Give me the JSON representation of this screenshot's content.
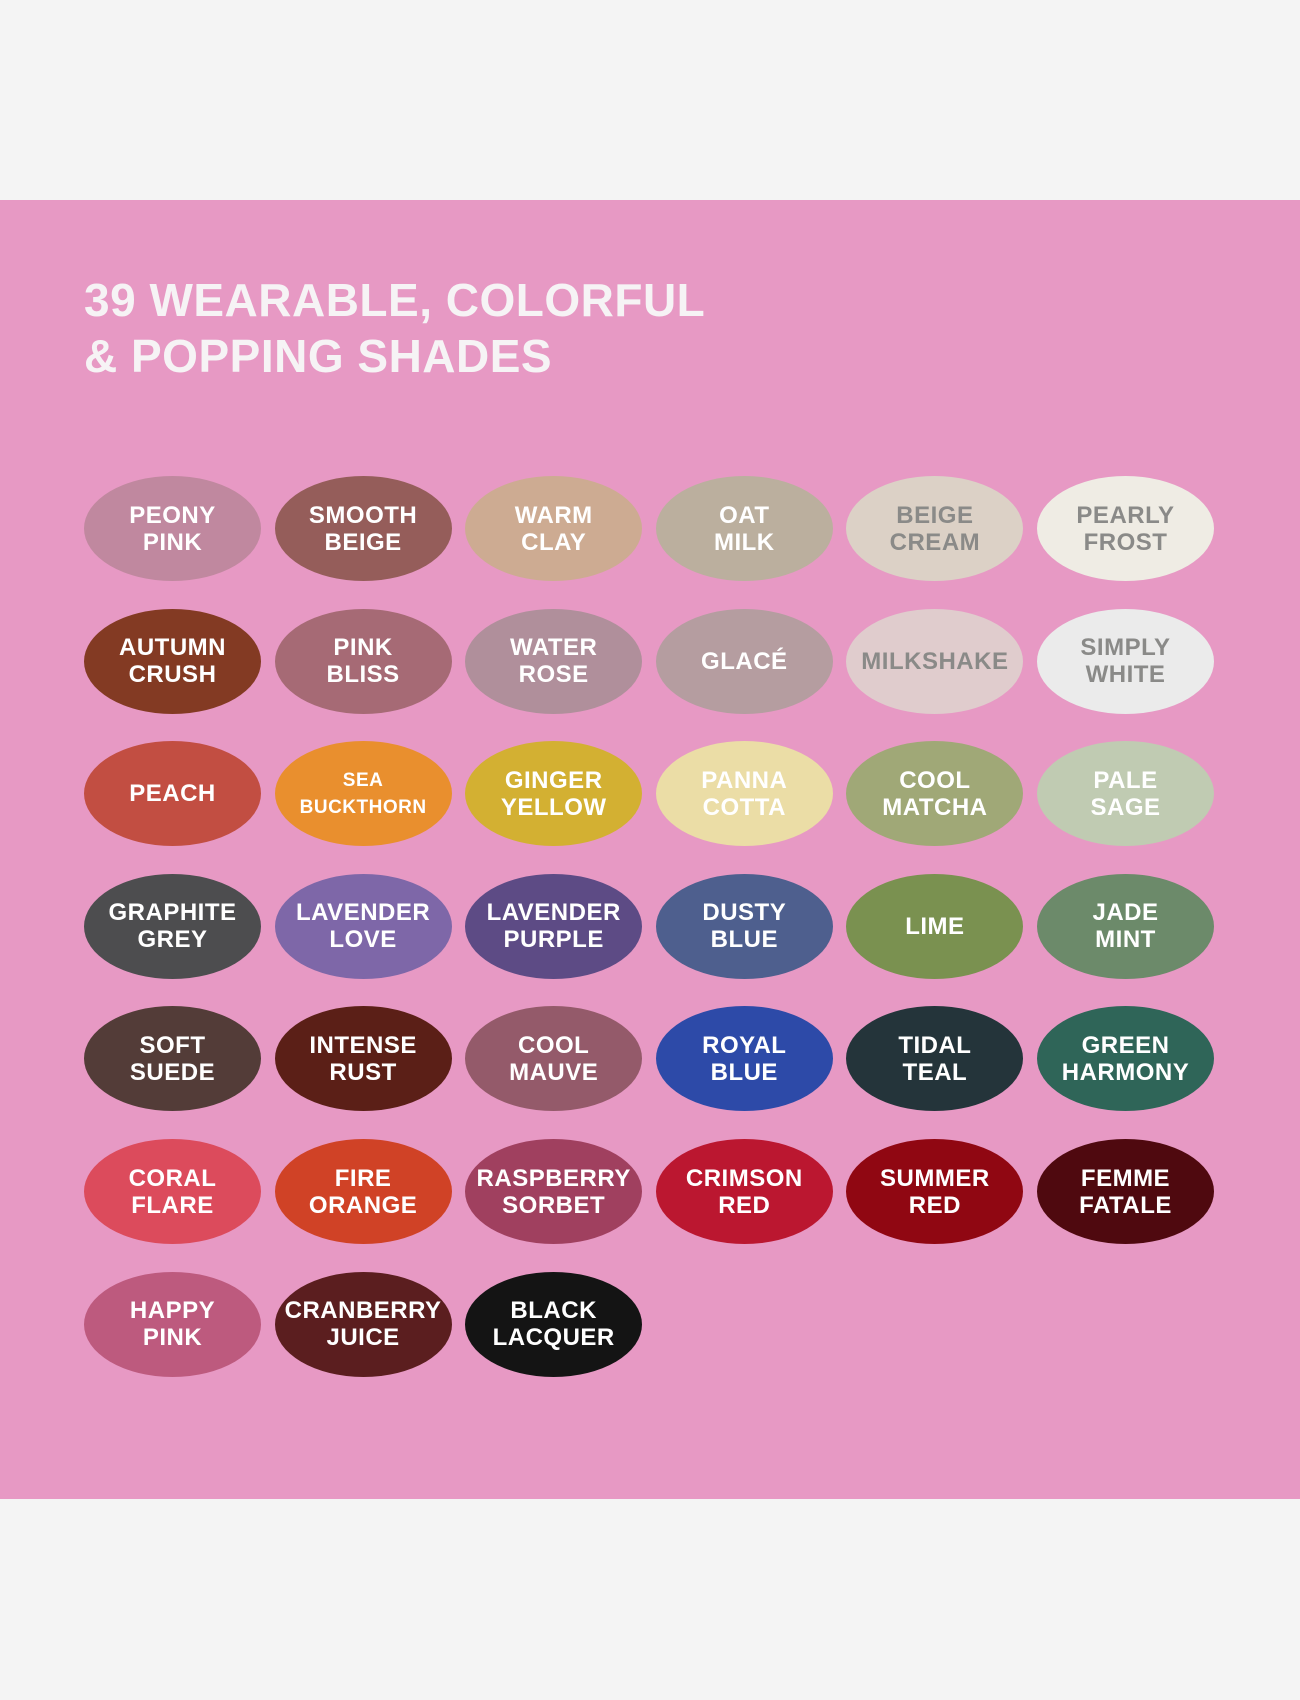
{
  "background_color": "#e799c4",
  "title": {
    "line1": "39 WEARABLE, COLORFUL",
    "line2": "& POPPING SHADES"
  },
  "shades": [
    {
      "name": "PEONY\nPINK",
      "color": "#c0889f",
      "text": "#ffffff"
    },
    {
      "name": "SMOOTH\nBEIGE",
      "color": "#955d5a",
      "text": "#ffffff"
    },
    {
      "name": "WARM\nCLAY",
      "color": "#cdab92",
      "text": "#ffffff"
    },
    {
      "name": "OAT\nMILK",
      "color": "#bbaf9e",
      "text": "#ffffff"
    },
    {
      "name": "BEIGE\nCREAM",
      "color": "#dcd1c6",
      "text": "#8a8a88"
    },
    {
      "name": "PEARLY\nFROST",
      "color": "#efece4",
      "text": "#8a8a88"
    },
    {
      "name": "AUTUMN\nCRUSH",
      "color": "#833a23",
      "text": "#ffffff"
    },
    {
      "name": "PINK\nBLISS",
      "color": "#a66a75",
      "text": "#ffffff"
    },
    {
      "name": "WATER\nROSE",
      "color": "#b08f9b",
      "text": "#ffffff"
    },
    {
      "name": "GLACÉ",
      "color": "#b59da0",
      "text": "#ffffff"
    },
    {
      "name": "MILKSHAKE",
      "color": "#e0cccd",
      "text": "#8a8a88"
    },
    {
      "name": "SIMPLY\nWHITE",
      "color": "#ebebeb",
      "text": "#8a8a88"
    },
    {
      "name": "PEACH",
      "color": "#c24e42",
      "text": "#ffffff"
    },
    {
      "name": "SEA\nBUCKTHORN",
      "color": "#e98f2e",
      "text": "#ffffff"
    },
    {
      "name": "GINGER\nYELLOW",
      "color": "#d3b032",
      "text": "#ffffff"
    },
    {
      "name": "PANNA\nCOTTA",
      "color": "#ebdda6",
      "text": "#ffffff"
    },
    {
      "name": "COOL\nMATCHA",
      "color": "#a0a877",
      "text": "#ffffff"
    },
    {
      "name": "PALE\nSAGE",
      "color": "#c0cbb2",
      "text": "#ffffff"
    },
    {
      "name": "GRAPHITE\nGREY",
      "color": "#4d4d4f",
      "text": "#ffffff"
    },
    {
      "name": "LAVENDER\nLOVE",
      "color": "#7e67a8",
      "text": "#ffffff"
    },
    {
      "name": "LAVENDER\nPURPLE",
      "color": "#5d4b85",
      "text": "#ffffff"
    },
    {
      "name": "DUSTY\nBLUE",
      "color": "#4e5f8e",
      "text": "#ffffff"
    },
    {
      "name": "LIME",
      "color": "#7a9150",
      "text": "#ffffff"
    },
    {
      "name": "JADE\nMINT",
      "color": "#6c8a6a",
      "text": "#ffffff"
    },
    {
      "name": "SOFT\nSUEDE",
      "color": "#533c38",
      "text": "#ffffff"
    },
    {
      "name": "INTENSE\nRUST",
      "color": "#5b1f17",
      "text": "#ffffff"
    },
    {
      "name": "COOL\nMAUVE",
      "color": "#945a6a",
      "text": "#ffffff"
    },
    {
      "name": "ROYAL\nBLUE",
      "color": "#2d4aa8",
      "text": "#ffffff"
    },
    {
      "name": "TIDAL\nTEAL",
      "color": "#24343a",
      "text": "#ffffff"
    },
    {
      "name": "GREEN\nHARMONY",
      "color": "#2f6558",
      "text": "#ffffff"
    },
    {
      "name": "CORAL\nFLARE",
      "color": "#dc4b5c",
      "text": "#ffffff"
    },
    {
      "name": "FIRE\nORANGE",
      "color": "#d04226",
      "text": "#ffffff"
    },
    {
      "name": "RASPBERRY\nSORBET",
      "color": "#a0405f",
      "text": "#ffffff"
    },
    {
      "name": "CRIMSON\nRED",
      "color": "#bb1730",
      "text": "#ffffff"
    },
    {
      "name": "SUMMER\nRED",
      "color": "#900712",
      "text": "#ffffff"
    },
    {
      "name": "FEMME\nFATALE",
      "color": "#4f090f",
      "text": "#ffffff"
    },
    {
      "name": "HAPPY\nPINK",
      "color": "#bd5a7e",
      "text": "#ffffff"
    },
    {
      "name": "CRANBERRY\nJUICE",
      "color": "#5b1e1f",
      "text": "#ffffff"
    },
    {
      "name": "BLACK\nLACQUER",
      "color": "#141414",
      "text": "#ffffff"
    }
  ]
}
